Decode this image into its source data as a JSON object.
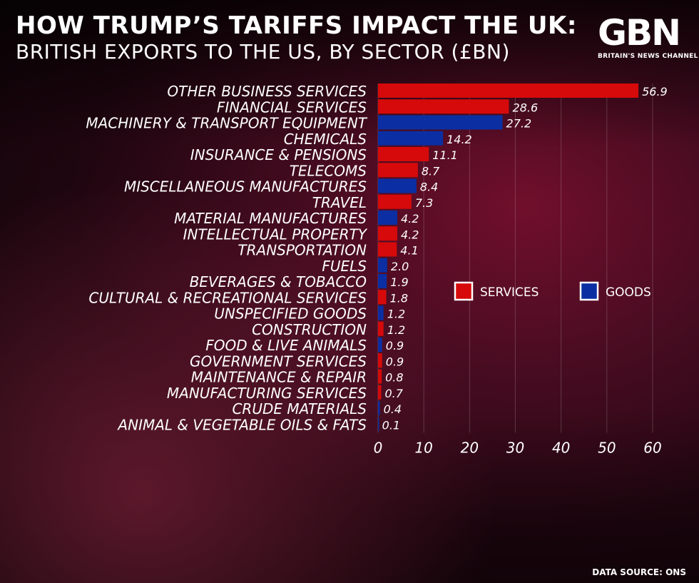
{
  "header": {
    "title": "HOW TRUMP’S TARIFFS IMPACT THE UK:",
    "subtitle": "BRITISH EXPORTS TO THE US, BY SECTOR (£BN)"
  },
  "logo": {
    "text": "GBN",
    "tagline": "BRITAIN'S NEWS CHANNEL"
  },
  "footer": {
    "source": "DATA SOURCE: ONS"
  },
  "colors": {
    "services": "#d60a0a",
    "goods": "#0b2fa3"
  },
  "chart_data": {
    "type": "bar",
    "orientation": "horizontal",
    "title": "HOW TRUMP’S TARIFFS IMPACT THE UK:",
    "subtitle": "BRITISH EXPORTS TO THE US, BY SECTOR (£BN)",
    "xlim": [
      0,
      60
    ],
    "xticks": [
      0,
      10,
      20,
      30,
      40,
      50,
      60
    ],
    "grid": true,
    "legend": {
      "placement": "right",
      "entries": [
        {
          "label": "SERVICES",
          "color": "#d60a0a"
        },
        {
          "label": "GOODS",
          "color": "#0b2fa3"
        }
      ]
    },
    "categories": [
      "OTHER BUSINESS SERVICES",
      "FINANCIAL SERVICES",
      "MACHINERY & TRANSPORT EQUIPMENT",
      "CHEMICALS",
      "INSURANCE & PENSIONS",
      "TELECOMS",
      "MISCELLANEOUS MANUFACTURES",
      "TRAVEL",
      "MATERIAL MANUFACTURES",
      "INTELLECTUAL PROPERTY",
      "TRANSPORTATION",
      "FUELS",
      "BEVERAGES & TOBACCO",
      "CULTURAL & RECREATIONAL SERVICES",
      "UNSPECIFIED GOODS",
      "CONSTRUCTION",
      "FOOD & LIVE ANIMALS",
      "GOVERNMENT SERVICES",
      "MAINTENANCE & REPAIR",
      "MANUFACTURING SERVICES",
      "CRUDE MATERIALS",
      "ANIMAL & VEGETABLE OILS & FATS"
    ],
    "values": [
      56.9,
      28.6,
      27.2,
      14.2,
      11.1,
      8.7,
      8.4,
      7.3,
      4.2,
      4.2,
      4.1,
      2.0,
      1.9,
      1.8,
      1.2,
      1.2,
      0.9,
      0.9,
      0.8,
      0.7,
      0.4,
      0.1
    ],
    "labels": [
      "56.9",
      "28.6",
      "27.2",
      "14.2",
      "11.1",
      "8.7",
      "8.4",
      "7.3",
      "4.2",
      "4.2",
      "4.1",
      "2.0",
      "1.9",
      "1.8",
      "1.2",
      "1.2",
      "0.9",
      "0.9",
      "0.8",
      "0.7",
      "0.4",
      "0.1"
    ],
    "groups": [
      "SERVICES",
      "SERVICES",
      "GOODS",
      "GOODS",
      "SERVICES",
      "SERVICES",
      "GOODS",
      "SERVICES",
      "GOODS",
      "SERVICES",
      "SERVICES",
      "GOODS",
      "GOODS",
      "SERVICES",
      "GOODS",
      "SERVICES",
      "GOODS",
      "SERVICES",
      "SERVICES",
      "SERVICES",
      "GOODS",
      "GOODS"
    ]
  }
}
